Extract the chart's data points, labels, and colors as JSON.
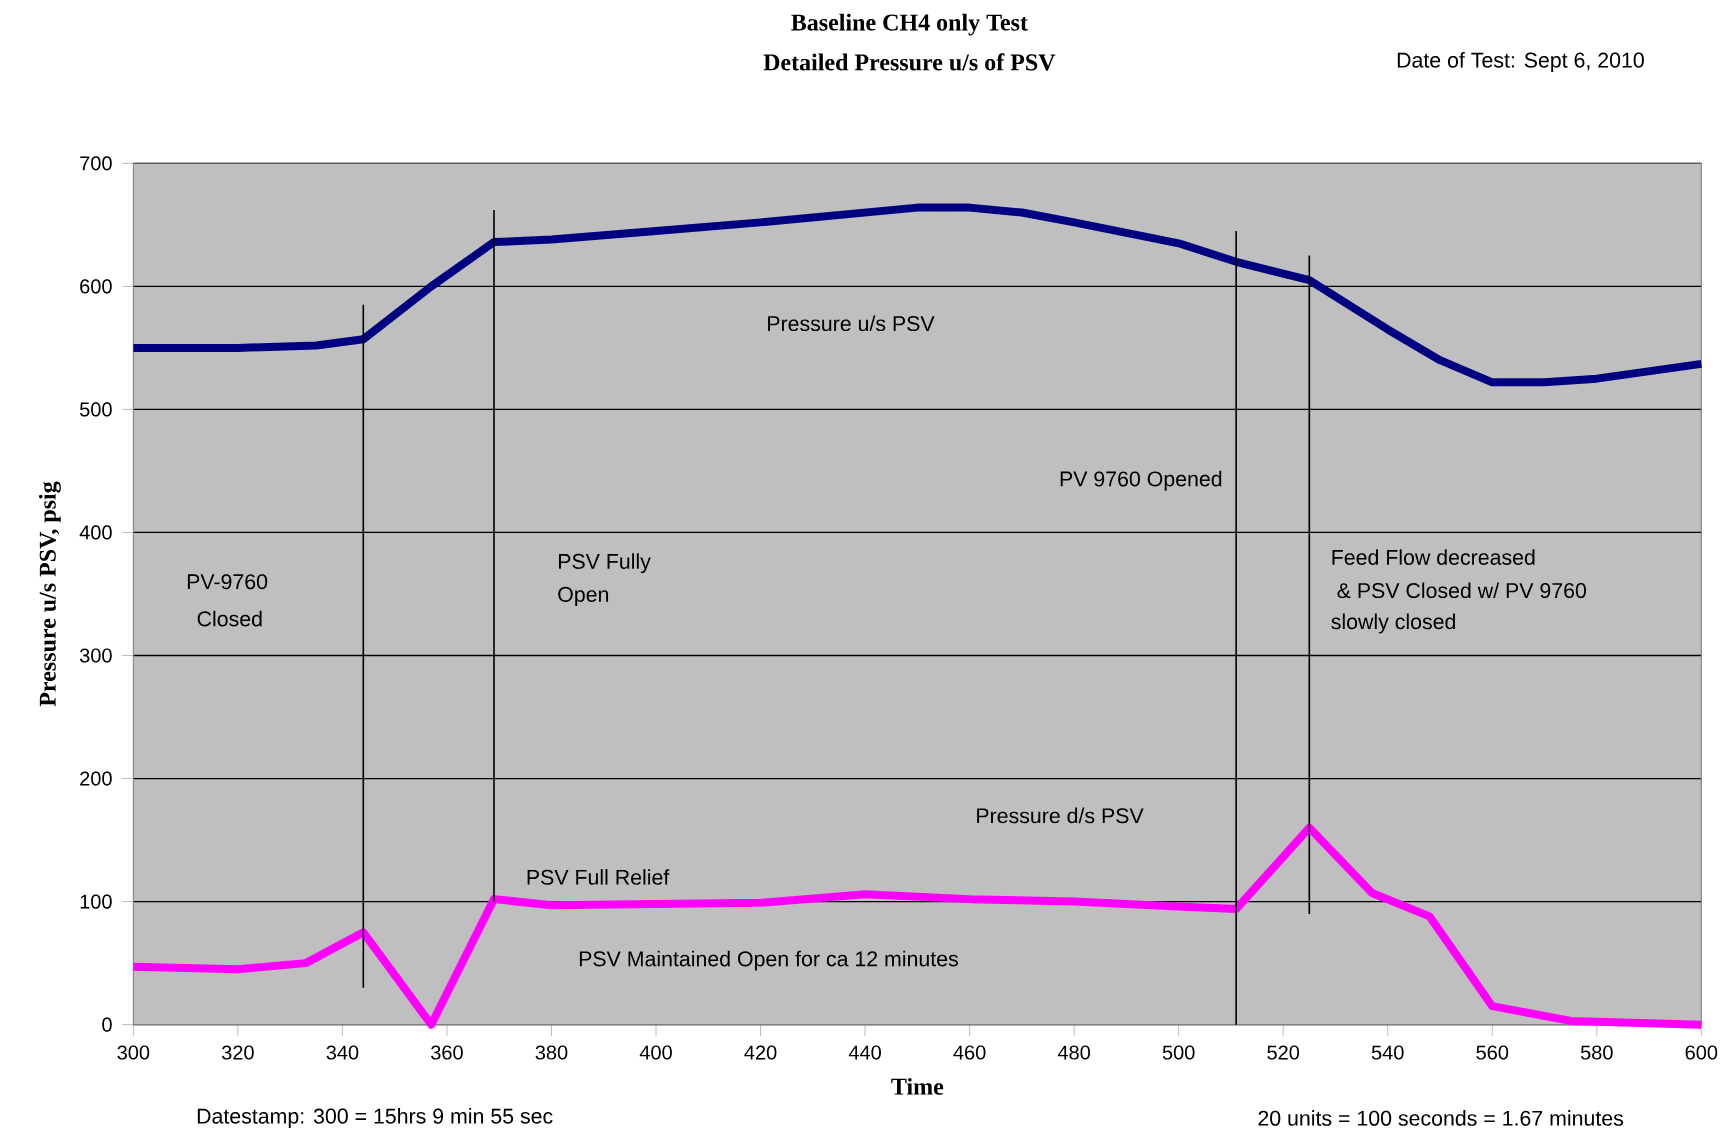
{
  "chart_data": {
    "type": "line",
    "title": "Baseline CH4 only Test",
    "subtitle": "Detailed Pressure u/s of PSV",
    "xlabel": "Time",
    "ylabel": "Pressure u/s PSV, psig",
    "xlim": [
      300,
      600
    ],
    "ylim": [
      0,
      700
    ],
    "xticks": [
      300,
      320,
      340,
      360,
      380,
      400,
      420,
      440,
      460,
      480,
      500,
      520,
      540,
      560,
      580,
      600
    ],
    "yticks": [
      0,
      100,
      200,
      300,
      400,
      500,
      600,
      700
    ],
    "grid": "y",
    "line_style": "solid",
    "series": [
      {
        "color": "#000080",
        "x": [
          300,
          320,
          335,
          344,
          357,
          369,
          380,
          400,
          420,
          440,
          450,
          460,
          470,
          480,
          500,
          511,
          525,
          540,
          550,
          560,
          570,
          580,
          600
        ],
        "values": [
          550,
          550,
          552,
          557,
          600,
          636,
          638,
          645,
          652,
          660,
          664,
          664,
          660,
          652,
          635,
          620,
          605,
          565,
          540,
          522,
          522,
          525,
          537
        ]
      },
      {
        "color": "#ff00ff",
        "x": [
          300,
          320,
          333,
          344,
          357,
          369,
          380,
          400,
          420,
          440,
          460,
          480,
          500,
          511,
          525,
          537,
          548,
          560,
          575,
          600
        ],
        "values": [
          47,
          45,
          50,
          75,
          0,
          102,
          97,
          98,
          99,
          106,
          102,
          100,
          96,
          94,
          160,
          107,
          88,
          15,
          3,
          0
        ]
      },
      {
        "color": "#000000",
        "x": [
          344,
          344
        ],
        "values": [
          30,
          585
        ]
      },
      {
        "color": "#000000",
        "x": [
          369,
          369
        ],
        "values": [
          100,
          662
        ]
      },
      {
        "color": "#000000",
        "x": [
          511,
          511
        ],
        "values": [
          0,
          645
        ]
      },
      {
        "color": "#000000",
        "x": [
          525,
          525
        ],
        "values": [
          90,
          625
        ]
      }
    ],
    "annotations": [
      "Date of Test:  Sept 6, 2010",
      "Datestamp:  300 = 15hrs 9 min 55 sec",
      "20 units = 100 seconds = 1.67 minutes",
      "Pressure u/s PSV",
      "PV-9760",
      "Closed",
      "PSV Fully",
      "Open",
      "PV 9760 Opened",
      "Feed Flow decreased",
      " & PSV Closed w/ PV 9760",
      "slowly closed",
      "Pressure d/s PSV",
      "PSV Full Relief",
      "PSV Maintained Open for ca 12 minutes"
    ]
  }
}
